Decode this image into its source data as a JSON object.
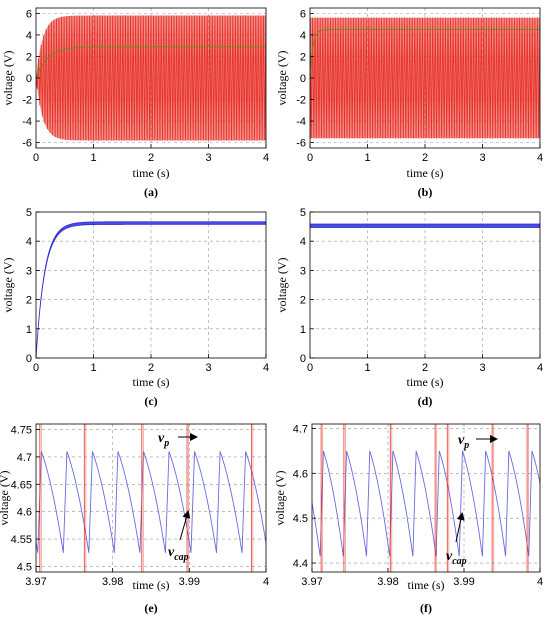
{
  "chart_data": [
    {
      "id": "a",
      "panel_label": "(a)",
      "type": "line",
      "xlabel": "time (s)",
      "ylabel": "voltage (V)",
      "xlim": [
        0,
        4
      ],
      "ylim": [
        -6.5,
        6.5
      ],
      "xticks": [
        "0",
        "1",
        "2",
        "3",
        "4"
      ],
      "yticks": [
        "-6",
        "-4",
        "-2",
        "0",
        "2",
        "4",
        "6"
      ],
      "grid": true,
      "series": [
        {
          "role": "piezo-voltage",
          "color": "#e8332a",
          "amplitude": 5.8,
          "rise_time": 0.35,
          "style": "dense-oscillation"
        },
        {
          "role": "capacitor-voltage",
          "color": "#6b8c1f",
          "final": 2.9,
          "rise_time": 0.2
        }
      ]
    },
    {
      "id": "b",
      "panel_label": "(b)",
      "type": "line",
      "xlabel": "time (s)",
      "ylabel": "voltage (V)",
      "xlim": [
        0,
        4
      ],
      "ylim": [
        -6.5,
        6.5
      ],
      "xticks": [
        "0",
        "1",
        "2",
        "3",
        "4"
      ],
      "yticks": [
        "-6",
        "-4",
        "-2",
        "0",
        "2",
        "4",
        "6"
      ],
      "grid": true,
      "series": [
        {
          "role": "piezo-voltage",
          "color": "#e8332a",
          "amplitude": 5.6,
          "rise_time": 0.0,
          "style": "dense-oscillation"
        },
        {
          "role": "capacitor-voltage",
          "color": "#6b8c1f",
          "final": 4.5,
          "rise_time": 0.05
        }
      ]
    },
    {
      "id": "c",
      "panel_label": "(c)",
      "type": "line",
      "xlabel": "time (s)",
      "ylabel": "voltage (V)",
      "xlim": [
        0,
        4
      ],
      "ylim": [
        0,
        5
      ],
      "xticks": [
        "0",
        "1",
        "2",
        "3",
        "4"
      ],
      "yticks": [
        "0",
        "1",
        "2",
        "3",
        "4",
        "5"
      ],
      "grid": true,
      "series": [
        {
          "role": "capacitor-voltage",
          "color": "#2b2bd9",
          "final": 4.62,
          "ripple": 0.09,
          "rise_time": 0.15
        }
      ]
    },
    {
      "id": "d",
      "panel_label": "(d)",
      "type": "line",
      "xlabel": "time (s)",
      "ylabel": "voltage (V)",
      "xlim": [
        0,
        4
      ],
      "ylim": [
        0,
        5
      ],
      "xticks": [
        "0",
        "1",
        "2",
        "3",
        "4"
      ],
      "yticks": [
        "0",
        "1",
        "2",
        "3",
        "4",
        "5"
      ],
      "grid": true,
      "series": [
        {
          "role": "capacitor-voltage",
          "color": "#2b2bd9",
          "final": 4.53,
          "ripple": 0.12,
          "rise_time": 0.0
        }
      ]
    },
    {
      "id": "e",
      "panel_label": "(e)",
      "type": "line",
      "xlabel": "time (s)",
      "ylabel": "voltage (V)",
      "xlim": [
        3.97,
        4.0
      ],
      "ylim": [
        4.49,
        4.76
      ],
      "xticks": [
        "3.97",
        "3.98",
        "3.99",
        "4"
      ],
      "yticks": [
        "4.5",
        "4.55",
        "4.6",
        "4.65",
        "4.7",
        "4.75"
      ],
      "grid": true,
      "annotations": [
        {
          "text": "v",
          "sub": "p"
        },
        {
          "text": "v",
          "sub": "cap"
        }
      ],
      "series": [
        {
          "role": "capacitor-voltage",
          "color": "#6a6ae0",
          "waveform": "sawtooth",
          "max": 4.71,
          "min": 4.525,
          "period": 0.00333,
          "first_peak": 3.9707
        },
        {
          "role": "piezo-spikes",
          "color": "#e8332a",
          "x": [
            3.9705,
            3.9763,
            3.9838,
            3.9897,
            3.9981
          ]
        }
      ]
    },
    {
      "id": "f",
      "panel_label": "(f)",
      "type": "line",
      "xlabel": "time (s)",
      "ylabel": "voltage (V)",
      "xlim": [
        3.97,
        4.0
      ],
      "ylim": [
        4.38,
        4.71
      ],
      "xticks": [
        "3.97",
        "3.98",
        "3.99",
        "4"
      ],
      "yticks": [
        "4.4",
        "4.5",
        "4.6",
        "4.7"
      ],
      "grid": true,
      "annotations": [
        {
          "text": "v",
          "sub": "p"
        },
        {
          "text": "v",
          "sub": "cap"
        }
      ],
      "series": [
        {
          "role": "capacitor-voltage",
          "color": "#6a6ae0",
          "waveform": "sawtooth",
          "max": 4.65,
          "min": 4.415,
          "period": 0.00305,
          "first_peak": 3.9715
        },
        {
          "role": "piezo-spikes",
          "color": "#e8332a",
          "x": [
            3.9712,
            3.9742,
            3.9803,
            3.9862,
            3.9878,
            3.9937,
            3.9983
          ]
        }
      ]
    }
  ]
}
